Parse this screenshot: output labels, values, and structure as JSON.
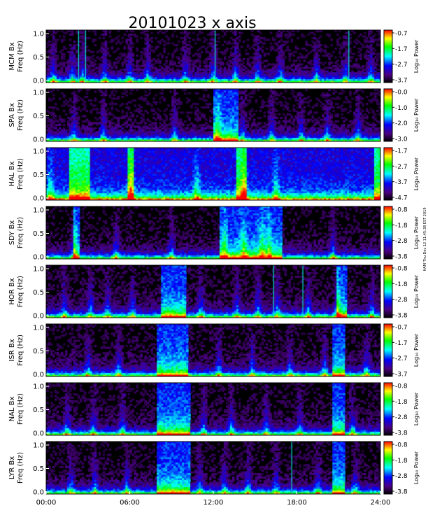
{
  "chart_data": {
    "type": "heatmap",
    "title": "20101023 x axis",
    "x_axis": {
      "range_hours": [
        0,
        24
      ],
      "tick_values_hours": [
        0,
        6,
        12,
        18,
        24
      ],
      "tick_labels": [
        "00:00",
        "06:00",
        "12:00",
        "18:00",
        "24:00"
      ]
    },
    "y_label": "Freq (Hz)",
    "y_range": [
      0,
      1.0
    ],
    "y_ticks": [
      "0.0",
      "0.5",
      "1.0"
    ],
    "colorbar_label": "Log₁₀ Power",
    "colormap": [
      "#000000",
      "#4b0082",
      "#0000ff",
      "#00ffff",
      "#00ff00",
      "#ffff00",
      "#ff0000"
    ],
    "side_note": "HAM Thu Dec 12 11:45:38 EST 2019",
    "panels": [
      {
        "station": "MCM Bx",
        "cbar_ticks": [
          "-0.7",
          "-1.7",
          "-2.7",
          "-3.7"
        ],
        "background_level": 0.05,
        "bursts_hours": [
          0.5,
          1.9,
          2.6,
          4.2,
          6.0,
          7.3,
          10.0,
          12.0,
          13.6,
          15.2,
          16.8,
          19.4,
          21.5,
          23.3
        ],
        "spikes_hours": [
          2.3,
          2.8,
          12.1,
          21.7
        ],
        "strong_intervals_hours": []
      },
      {
        "station": "SPA Bx",
        "cbar_ticks": [
          "-0.0",
          "-1.0",
          "-2.0",
          "-3.0"
        ],
        "background_level": 0.05,
        "bursts_hours": [
          2.0,
          4.1,
          9.2,
          12.3,
          14.1,
          16.2,
          18.3,
          20.2,
          22.4
        ],
        "spikes_hours": [],
        "strong_intervals_hours": [
          [
            12.0,
            13.8
          ]
        ]
      },
      {
        "station": "HAL Bx",
        "cbar_ticks": [
          "-1.7",
          "-2.7",
          "-3.7",
          "-4.7"
        ],
        "background_level": 0.45,
        "bursts_hours": [
          0.3,
          6.1,
          10.8,
          14.2,
          16.5
        ],
        "spikes_hours": [],
        "strong_intervals_hours": [
          [
            1.6,
            3.2
          ],
          [
            5.8,
            6.3
          ],
          [
            13.6,
            14.4
          ],
          [
            23.6,
            24.0
          ]
        ]
      },
      {
        "station": "SDY Bx",
        "cbar_ticks": [
          "-0.8",
          "-1.8",
          "-2.8",
          "-3.8"
        ],
        "background_level": 0.05,
        "bursts_hours": [
          2.0,
          5.0,
          9.0,
          12.8,
          14.2,
          15.5,
          16.0,
          20.6
        ],
        "spikes_hours": [],
        "strong_intervals_hours": [
          [
            1.9,
            2.4
          ],
          [
            12.5,
            17.0
          ]
        ]
      },
      {
        "station": "HOR Bx",
        "cbar_ticks": [
          "-0.8",
          "-1.8",
          "-2.8",
          "-3.8"
        ],
        "background_level": 0.07,
        "bursts_hours": [
          1.3,
          3.2,
          4.4,
          6.2,
          11.1,
          13.7,
          15.2,
          16.6,
          18.8,
          20.9,
          23.4
        ],
        "spikes_hours": [
          16.3,
          18.4
        ],
        "strong_intervals_hours": [
          [
            8.2,
            10.1
          ],
          [
            20.8,
            21.6
          ]
        ]
      },
      {
        "station": "ISR Bx",
        "cbar_ticks": [
          "-0.7",
          "-1.7",
          "-2.7",
          "-3.7"
        ],
        "background_level": 0.07,
        "bursts_hours": [
          3.0,
          5.2,
          12.4,
          14.8,
          17.5,
          20.0,
          23.0
        ],
        "spikes_hours": [],
        "strong_intervals_hours": [
          [
            8.0,
            10.2
          ],
          [
            20.6,
            21.5
          ]
        ]
      },
      {
        "station": "NAL Bx",
        "cbar_ticks": [
          "-0.8",
          "-1.8",
          "-2.8",
          "-3.8"
        ],
        "background_level": 0.06,
        "bursts_hours": [
          1.5,
          3.4,
          5.5,
          11.3,
          13.3,
          15.8,
          18.2,
          22.0
        ],
        "spikes_hours": [],
        "strong_intervals_hours": [
          [
            7.9,
            10.3
          ],
          [
            20.5,
            21.5
          ]
        ]
      },
      {
        "station": "LYR Bx",
        "cbar_ticks": [
          "-0.8",
          "-1.8",
          "-2.8",
          "-3.8"
        ],
        "background_level": 0.06,
        "bursts_hours": [
          1.8,
          3.5,
          5.8,
          11.0,
          12.8,
          14.5,
          16.5,
          19.5,
          22.2
        ],
        "spikes_hours": [
          17.6
        ],
        "strong_intervals_hours": [
          [
            8.0,
            10.3
          ],
          [
            20.6,
            21.5
          ]
        ]
      }
    ]
  }
}
